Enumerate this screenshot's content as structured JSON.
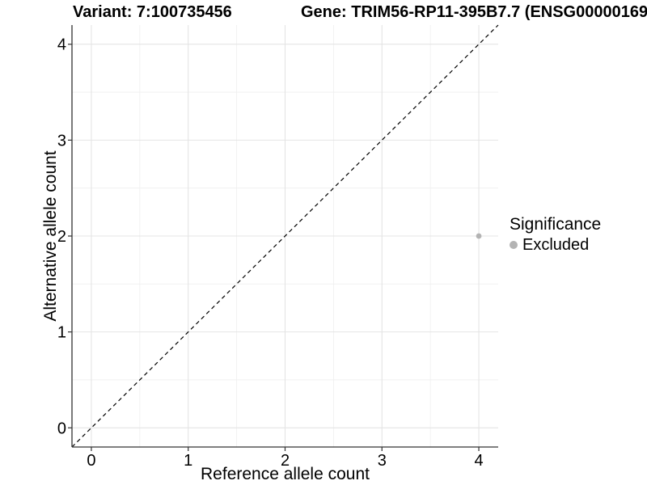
{
  "titles": {
    "variant": "Variant: 7:100735456",
    "gene": "Gene: TRIM56-RP11-395B7.7 (ENSG00000169"
  },
  "legend": {
    "title": "Significance",
    "items": [
      {
        "label": "Excluded",
        "color": "#b3b3b3"
      }
    ]
  },
  "chart_data": {
    "type": "scatter",
    "title": "Variant: 7:100735456 — Gene: TRIM56-RP11-395B7.7 (ENSG00000169",
    "xlabel": "Reference allele count",
    "ylabel": "Alternative allele count",
    "xlim": [
      -0.2,
      4.2
    ],
    "ylim": [
      -0.2,
      4.2
    ],
    "x_ticks": [
      0,
      1,
      2,
      3,
      4
    ],
    "y_ticks": [
      0,
      1,
      2,
      3,
      4
    ],
    "x_minor_ticks": [
      0.5,
      1.5,
      2.5,
      3.5
    ],
    "y_minor_ticks": [
      0.5,
      1.5,
      2.5,
      3.5
    ],
    "grid": true,
    "legend_position": "right",
    "series": [
      {
        "name": "Excluded",
        "color": "#b3b3b3",
        "points": [
          {
            "x": 4,
            "y": 2
          }
        ]
      }
    ],
    "reference_line": {
      "slope": 1,
      "intercept": 0,
      "style": "dashed",
      "color": "#000000"
    }
  },
  "colors": {
    "grid_major": "#e4e4e4",
    "grid_minor": "#efefef",
    "axis": "#333333",
    "text": "#000000",
    "point": "#b3b3b3"
  }
}
